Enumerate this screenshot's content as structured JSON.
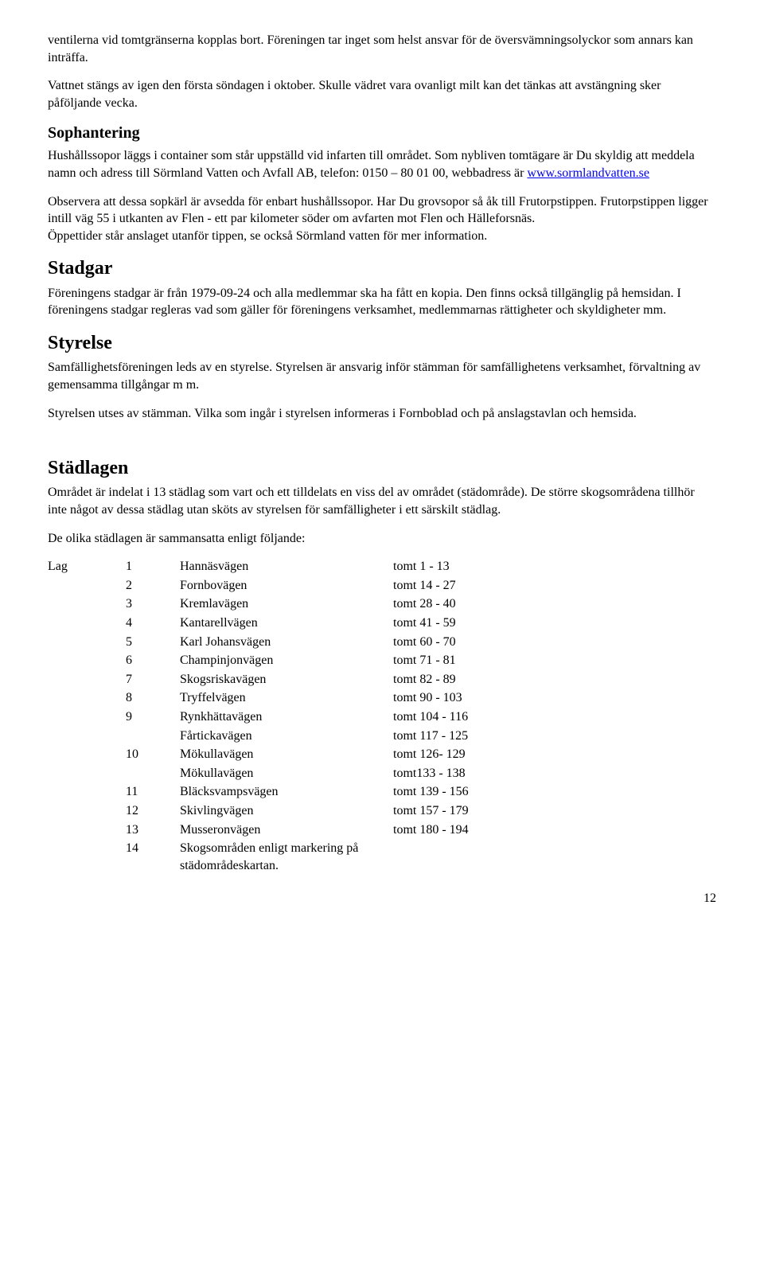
{
  "intro_p1": "ventilerna vid tomtgränserna kopplas bort. Föreningen tar inget som helst ansvar för de översvämningsolyckor som annars kan inträffa.",
  "intro_p2": "Vattnet stängs av igen den första söndagen i oktober. Skulle vädret vara ovanligt milt kan det tänkas att avstängning sker påföljande vecka.",
  "sophantering_h": "Sophantering",
  "sophantering_p1a": "Hushållssopor läggs i container som står uppställd vid infarten till området. Som nybliven tomtägare är Du skyldig att meddela namn och adress till Sörmland Vatten och Avfall AB, telefon: 0150 – 80 01 00, webbadress är ",
  "sophantering_link": "www.sormlandvatten.se",
  "sophantering_p2": "Observera att dessa sopkärl är avsedda för enbart hushållssopor. Har Du grovsopor så åk till Frutorpstippen. Frutorpstippen ligger intill väg 55 i utkanten av Flen - ett par kilometer söder om avfarten mot Flen och Hälleforsnäs.",
  "sophantering_p3": "Öppettider står anslaget utanför tippen, se också Sörmland vatten för mer information.",
  "stadgar_h": "Stadgar",
  "stadgar_p": "Föreningens stadgar är från 1979-09-24 och alla medlemmar ska ha fått en kopia. Den finns också tillgänglig på hemsidan. I föreningens stadgar regleras vad som gäller för föreningens verksamhet, medlemmarnas rättigheter och skyldigheter mm.",
  "styrelse_h": "Styrelse",
  "styrelse_p1": "Samfällighetsföreningen leds av en styrelse. Styrelsen är ansvarig inför stämman för samfällighetens verksamhet, förvaltning av gemensamma tillgångar m m.",
  "styrelse_p2": "Styrelsen utses av stämman. Vilka som ingår i styrelsen informeras i Fornboblad och på anslagstavlan och hemsida.",
  "stadlagen_h": "Städlagen",
  "stadlagen_p1": "Området är indelat i 13 städlag som vart och ett tilldelats en viss del av området (städområde). De större skogsområdena tillhör inte något av dessa städlag utan sköts av styrelsen för samfälligheter i ett särskilt städlag.",
  "stadlagen_p2": "De olika städlagen är sammansatta enligt följande:",
  "table_label": "Lag",
  "rows": [
    {
      "num": "1",
      "road": "Hannäsvägen",
      "tomt": "tomt 1 -  13"
    },
    {
      "num": "2",
      "road": "Fornbovägen",
      "tomt": "tomt 14 -  27"
    },
    {
      "num": "3",
      "road": "Kremlavägen",
      "tomt": "tomt 28 -  40"
    },
    {
      "num": "4",
      "road": "Kantarellvägen",
      "tomt": "tomt  41 -  59"
    },
    {
      "num": "5",
      "road": "Karl Johansvägen",
      "tomt": "tomt  60 -  70"
    },
    {
      "num": "6",
      "road": "Champinjonvägen",
      "tomt": "tomt  71 -  81"
    },
    {
      "num": "7",
      "road": "Skogsriskavägen",
      "tomt": "tomt  82 -  89"
    },
    {
      "num": "8",
      "road": "Tryffelvägen",
      "tomt": "tomt  90 - 103"
    },
    {
      "num": "9",
      "road": "Rynkhättavägen",
      "tomt": "tomt 104 - 116"
    },
    {
      "num": "",
      "road": "Fårtickavägen",
      "tomt": "tomt 117 - 125"
    },
    {
      "num": "10",
      "road": "Mökullavägen",
      "tomt": "tomt 126- 129"
    },
    {
      "num": "",
      "road": " Mökullavägen",
      "tomt": " tomt133 - 138"
    },
    {
      "num": "11",
      "road": "Bläcksvampsvägen",
      "tomt": "tomt 139 - 156"
    },
    {
      "num": "12",
      "road": "Skivlingvägen",
      "tomt": "tomt 157 - 179"
    },
    {
      "num": "13",
      "road": "Musseronvägen",
      "tomt": "tomt 180 - 194"
    },
    {
      "num": "14",
      "road": "Skogsområden enligt markering på städområdeskartan.",
      "tomt": ""
    }
  ],
  "page_number": "12"
}
